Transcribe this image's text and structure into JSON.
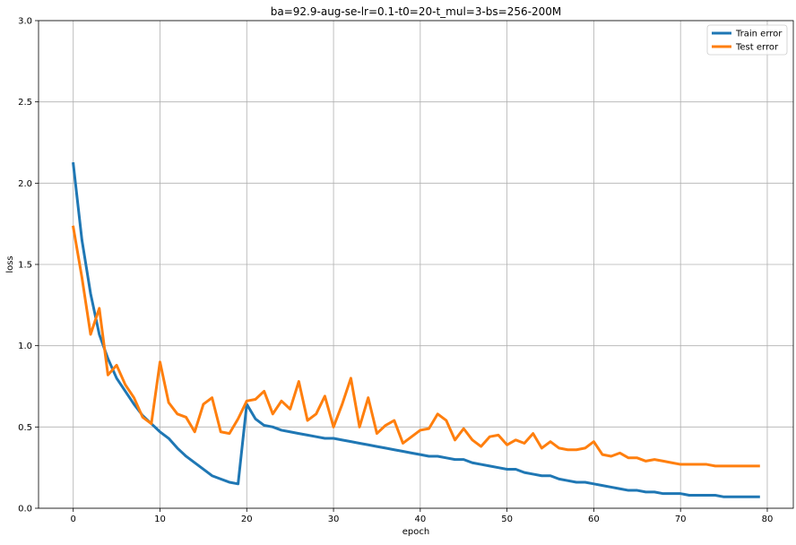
{
  "chart_data": {
    "type": "line",
    "title": "ba=92.9-aug-se-lr=0.1-t0=20-t_mul=3-bs=256-200M",
    "xlabel": "epoch",
    "ylabel": "loss",
    "xlim": [
      -4,
      83
    ],
    "ylim": [
      0,
      3.0
    ],
    "xticks": [
      0,
      10,
      20,
      30,
      40,
      50,
      60,
      70,
      80
    ],
    "yticks": [
      0.0,
      0.5,
      1.0,
      1.5,
      2.0,
      2.5,
      3.0
    ],
    "xtick_labels": [
      "0",
      "10",
      "20",
      "30",
      "40",
      "50",
      "60",
      "70",
      "80"
    ],
    "ytick_labels": [
      "0.0",
      "0.5",
      "1.0",
      "1.5",
      "2.0",
      "2.5",
      "3.0"
    ],
    "grid": true,
    "legend_position": "top-right",
    "series": [
      {
        "name": "Train error",
        "color": "#1f77b4",
        "x": [
          0,
          1,
          2,
          3,
          4,
          5,
          6,
          7,
          8,
          9,
          10,
          11,
          12,
          13,
          14,
          15,
          16,
          17,
          18,
          19,
          20,
          21,
          22,
          23,
          24,
          25,
          26,
          27,
          28,
          29,
          30,
          31,
          32,
          33,
          34,
          35,
          36,
          37,
          38,
          39,
          40,
          41,
          42,
          43,
          44,
          45,
          46,
          47,
          48,
          49,
          50,
          51,
          52,
          53,
          54,
          55,
          56,
          57,
          58,
          59,
          60,
          61,
          62,
          63,
          64,
          65,
          66,
          67,
          68,
          69,
          70,
          71,
          72,
          73,
          74,
          75,
          76,
          77,
          78,
          79
        ],
        "values": [
          2.12,
          1.65,
          1.32,
          1.07,
          0.92,
          0.8,
          0.72,
          0.64,
          0.57,
          0.52,
          0.47,
          0.43,
          0.37,
          0.32,
          0.28,
          0.24,
          0.2,
          0.18,
          0.16,
          0.15,
          0.64,
          0.55,
          0.51,
          0.5,
          0.48,
          0.47,
          0.46,
          0.45,
          0.44,
          0.43,
          0.43,
          0.42,
          0.41,
          0.4,
          0.39,
          0.38,
          0.37,
          0.36,
          0.35,
          0.34,
          0.33,
          0.32,
          0.32,
          0.31,
          0.3,
          0.3,
          0.28,
          0.27,
          0.26,
          0.25,
          0.24,
          0.24,
          0.22,
          0.21,
          0.2,
          0.2,
          0.18,
          0.17,
          0.16,
          0.16,
          0.15,
          0.14,
          0.13,
          0.12,
          0.11,
          0.11,
          0.1,
          0.1,
          0.09,
          0.09,
          0.09,
          0.08,
          0.08,
          0.08,
          0.08,
          0.07,
          0.07,
          0.07,
          0.07,
          0.07
        ]
      },
      {
        "name": "Test error",
        "color": "#ff7f0e",
        "x": [
          0,
          1,
          2,
          3,
          4,
          5,
          6,
          7,
          8,
          9,
          10,
          11,
          12,
          13,
          14,
          15,
          16,
          17,
          18,
          19,
          20,
          21,
          22,
          23,
          24,
          25,
          26,
          27,
          28,
          29,
          30,
          31,
          32,
          33,
          34,
          35,
          36,
          37,
          38,
          39,
          40,
          41,
          42,
          43,
          44,
          45,
          46,
          47,
          48,
          49,
          50,
          51,
          52,
          53,
          54,
          55,
          56,
          57,
          58,
          59,
          60,
          61,
          62,
          63,
          64,
          65,
          66,
          67,
          68,
          69,
          70,
          71,
          72,
          73,
          74,
          75,
          76,
          77,
          78,
          79
        ],
        "values": [
          1.73,
          1.42,
          1.07,
          1.23,
          0.82,
          0.88,
          0.76,
          0.68,
          0.56,
          0.52,
          0.9,
          0.65,
          0.58,
          0.56,
          0.47,
          0.64,
          0.68,
          0.47,
          0.46,
          0.55,
          0.66,
          0.67,
          0.72,
          0.58,
          0.66,
          0.61,
          0.78,
          0.54,
          0.58,
          0.69,
          0.5,
          0.64,
          0.8,
          0.5,
          0.68,
          0.46,
          0.51,
          0.54,
          0.4,
          0.44,
          0.48,
          0.49,
          0.58,
          0.54,
          0.42,
          0.49,
          0.42,
          0.38,
          0.44,
          0.45,
          0.39,
          0.42,
          0.4,
          0.46,
          0.37,
          0.41,
          0.37,
          0.36,
          0.36,
          0.37,
          0.41,
          0.33,
          0.32,
          0.34,
          0.31,
          0.31,
          0.29,
          0.3,
          0.29,
          0.28,
          0.27,
          0.27,
          0.27,
          0.27,
          0.26,
          0.26,
          0.26,
          0.26,
          0.26,
          0.26
        ]
      }
    ]
  }
}
